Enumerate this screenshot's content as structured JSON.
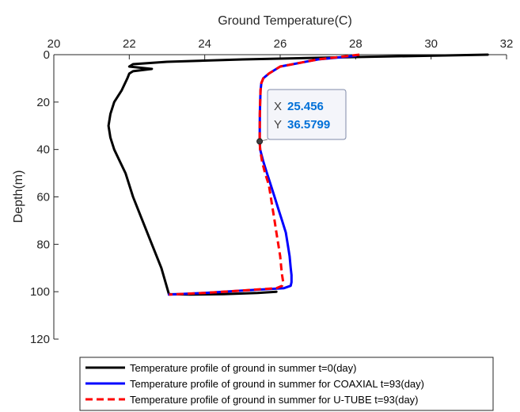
{
  "chart_data": {
    "type": "line",
    "xlabel": "Ground Temperature(C)",
    "ylabel": "Depth(m)",
    "x_axis_position": "top",
    "y_axis_reversed": true,
    "xlim": [
      20,
      32
    ],
    "ylim": [
      0,
      120
    ],
    "xticks": [
      20,
      22,
      24,
      26,
      28,
      30,
      32
    ],
    "yticks": [
      0,
      20,
      40,
      60,
      80,
      100,
      120
    ],
    "grid": false,
    "legend_position": "bottom",
    "series": [
      {
        "name": "Temperature profile of ground in summer t=0(day)",
        "color": "#000000",
        "style": "solid",
        "x": [
          31.5,
          28,
          25,
          23,
          22.1,
          22.0,
          22.6,
          22.1,
          22.0,
          21.95,
          21.8,
          21.6,
          21.5,
          21.45,
          21.5,
          21.6,
          21.75,
          21.9,
          22.1,
          22.35,
          22.6,
          22.85,
          23.05,
          23.6,
          24.5,
          25.4,
          25.9
        ],
        "y": [
          0,
          1,
          2,
          3,
          4,
          5,
          6,
          7,
          8,
          10,
          15,
          20,
          25,
          30,
          35,
          40,
          45,
          50,
          60,
          70,
          80,
          90,
          101,
          101.2,
          101,
          100.5,
          100
        ]
      },
      {
        "name": "Temperature profile of ground in summer for COAXIAL t=93(day)",
        "color": "#0000ff",
        "style": "solid",
        "x": [
          28.0,
          27.0,
          26.0,
          25.7,
          25.55,
          25.5,
          25.48,
          25.47,
          25.46,
          25.456,
          25.47,
          25.55,
          25.65,
          25.75,
          25.85,
          25.95,
          26.05,
          26.15,
          26.2,
          26.25,
          26.28,
          26.3,
          26.3,
          26.28,
          26.1,
          25.0,
          24.0,
          23.05
        ],
        "y": [
          0.5,
          2,
          5,
          8,
          10,
          12,
          15,
          20,
          25,
          36.58,
          40,
          45,
          50,
          55,
          60,
          65,
          70,
          75,
          80,
          85,
          90,
          93,
          96,
          97.5,
          98.5,
          99.5,
          100.5,
          101.2
        ]
      },
      {
        "name": "Temperature profile of ground in summer for U-TUBE t=93(day)",
        "color": "#ff0000",
        "style": "dashed",
        "x": [
          28.1,
          27.0,
          26.0,
          25.7,
          25.55,
          25.5,
          25.48,
          25.47,
          25.46,
          25.456,
          25.47,
          25.52,
          25.6,
          25.7,
          25.75,
          25.8,
          25.85,
          25.9,
          25.95,
          26.0,
          26.03,
          26.05,
          26.08,
          26.05,
          25.9,
          25.0,
          24.0,
          23.05
        ],
        "y": [
          0,
          2,
          5,
          8,
          10,
          12,
          15,
          20,
          25,
          36.58,
          40,
          45,
          50,
          55,
          60,
          65,
          70,
          75,
          80,
          85,
          90,
          93,
          96,
          97.5,
          98.5,
          99.5,
          100.5,
          101.2
        ]
      }
    ],
    "datatip": {
      "x_label": "X",
      "y_label": "Y",
      "x_value": "25.456",
      "y_value": "36.5799",
      "x": 25.456,
      "y": 36.5799
    }
  }
}
